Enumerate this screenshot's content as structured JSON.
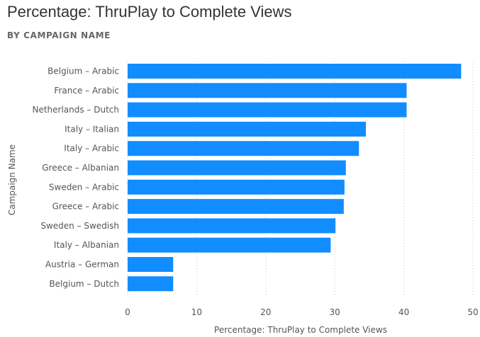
{
  "header": {
    "title": "Percentage: ThruPlay to Complete Views",
    "subtitle": "BY CAMPAIGN NAME"
  },
  "chart_data": {
    "type": "bar",
    "orientation": "horizontal",
    "title": "Percentage: ThruPlay to Complete Views",
    "subtitle": "BY CAMPAIGN NAME",
    "xlabel": "Percentage: ThruPlay to Complete Views",
    "ylabel": "Campaign Name",
    "xlim": [
      0,
      50
    ],
    "xticks": [
      0,
      10,
      20,
      30,
      40,
      50
    ],
    "grid": true,
    "bar_color": "#118DFF",
    "categories": [
      "Belgium – Arabic",
      "France – Arabic",
      "Netherlands – Dutch",
      "Italy – Italian",
      "Italy – Arabic",
      "Greece – Albanian",
      "Sweden – Arabic",
      "Greece – Arabic",
      "Sweden – Swedish",
      "Italy – Albanian",
      "Austria – German",
      "Belgium – Dutch"
    ],
    "values": [
      48.3,
      40.4,
      40.4,
      34.5,
      33.5,
      31.6,
      31.4,
      31.3,
      30.1,
      29.4,
      6.6,
      6.6
    ]
  }
}
